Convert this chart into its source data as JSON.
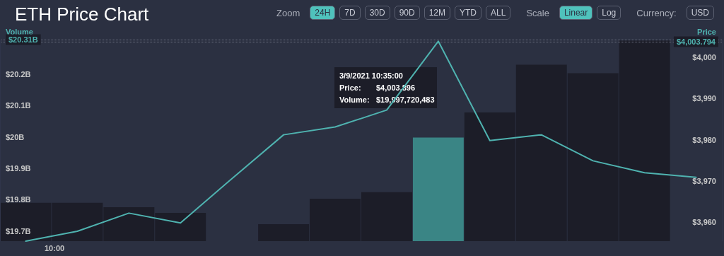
{
  "chart_data": {
    "type": "bar",
    "title": "ETH Price Chart",
    "categories": [
      null,
      null,
      null,
      null,
      null,
      null,
      null,
      null,
      null,
      null,
      null,
      null,
      null,
      null
    ],
    "ylabel": "Volume",
    "y2label": "Price",
    "ylim": [
      19.668,
      20.31
    ],
    "yticks": [
      {
        "value": 19.7,
        "label": "$19.7B"
      },
      {
        "value": 19.8,
        "label": "$19.8B"
      },
      {
        "value": 19.9,
        "label": "$19.9B"
      },
      {
        "value": 20,
        "label": "$20B"
      },
      {
        "value": 20.1,
        "label": "$20.1B"
      },
      {
        "value": 20.2,
        "label": "$20.2B"
      }
    ],
    "y2lim": [
      3955.4,
      4004.3
    ],
    "y2ticks": [
      {
        "value": 3960,
        "label": "$3,960"
      },
      {
        "value": 3970,
        "label": "$3,970"
      },
      {
        "value": 3980,
        "label": "$3,980"
      },
      {
        "value": 3990,
        "label": "$3,990"
      },
      {
        "value": 4000,
        "label": "$4,000"
      }
    ],
    "series": [
      {
        "colors": [
          "#1c1d28",
          "#1c1d28",
          "#1c1d28",
          "#1c1d28",
          "#1c1d28",
          "#1c1d28",
          "#1c1d28",
          "#1c1d28",
          "#3a8585",
          "#1c1d28",
          "#1c1d28",
          "#1c1d28",
          "#1c1d28",
          "#1c1d28"
        ],
        "values": [
          19.79,
          19.79,
          19.776,
          19.758,
          null,
          19.722,
          19.803,
          19.824,
          19.998,
          20.078,
          20.23,
          20.203,
          20.307,
          null
        ]
      },
      {
        "type": "line",
        "axis": "y2",
        "color": "#4fb3b0",
        "values": [
          3955.4,
          3957.8,
          3962.2,
          3959.8,
          3970.6,
          3981.2,
          3983.1,
          3987.2,
          4003.9,
          3979.8,
          3981.2,
          3974.9,
          3972.0,
          3970.9
        ]
      }
    ],
    "ref_lines": [
      {
        "axis": "y",
        "value": 20.31,
        "label": "$20.31B",
        "color": "#6b7080",
        "line_style": "dotted"
      },
      {
        "axis": "y2",
        "value": 4003.794,
        "label": "$4,003.794",
        "color": "#6b7080",
        "line_style": "dotted"
      }
    ],
    "annotations": [
      "Zoom",
      "24H",
      "7D",
      "30D",
      "90D",
      "12M",
      "YTD",
      "ALL",
      "Scale",
      "Linear",
      "Log",
      "Currency:",
      "USD",
      "10:00",
      "3/9/2021 10:35:00\nPrice: $4,003.896\nVolume: $19,997,720,483"
    ],
    "grid": false,
    "marker": "none",
    "line_style": "solid"
  }
}
